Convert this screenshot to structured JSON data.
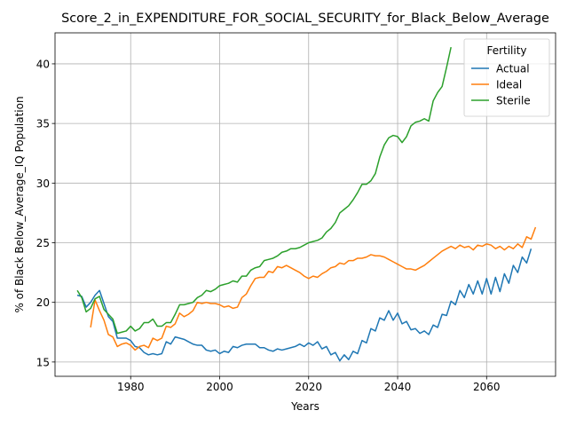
{
  "chart_data": {
    "type": "line",
    "title": "Score_2_in_EXPENDITURE_FOR_SOCIAL_SECURITY_for_Black_Below_Average",
    "xlabel": "Years",
    "ylabel": "% of Black Below_Average_IQ Population",
    "xlim": [
      1963,
      2075.5
    ],
    "ylim": [
      13.8,
      42.6
    ],
    "xticks": [
      1980,
      2000,
      2020,
      2040,
      2060
    ],
    "yticks": [
      15,
      20,
      25,
      30,
      35,
      40
    ],
    "grid": true,
    "legend": {
      "title": "Fertility",
      "position": "top-right"
    },
    "series": [
      {
        "name": "Actual",
        "color": "#1f77b4",
        "points": [
          [
            1968,
            20.6
          ],
          [
            1969,
            20.5
          ],
          [
            1970,
            19.6
          ],
          [
            1971,
            20.0
          ],
          [
            1972,
            20.6
          ],
          [
            1973,
            21.0
          ],
          [
            1974,
            19.9
          ],
          [
            1975,
            18.8
          ],
          [
            1976,
            18.4
          ],
          [
            1977,
            17.0
          ],
          [
            1978,
            17.0
          ],
          [
            1979,
            17.0
          ],
          [
            1980,
            16.8
          ],
          [
            1981,
            16.3
          ],
          [
            1982,
            16.2
          ],
          [
            1983,
            15.8
          ],
          [
            1984,
            15.6
          ],
          [
            1985,
            15.7
          ],
          [
            1986,
            15.6
          ],
          [
            1987,
            15.7
          ],
          [
            1988,
            16.7
          ],
          [
            1989,
            16.5
          ],
          [
            1990,
            17.1
          ],
          [
            1991,
            17.0
          ],
          [
            1992,
            16.9
          ],
          [
            1993,
            16.7
          ],
          [
            1994,
            16.5
          ],
          [
            1995,
            16.4
          ],
          [
            1996,
            16.4
          ],
          [
            1997,
            16.0
          ],
          [
            1998,
            15.9
          ],
          [
            1999,
            16.0
          ],
          [
            2000,
            15.7
          ],
          [
            2001,
            15.9
          ],
          [
            2002,
            15.8
          ],
          [
            2003,
            16.3
          ],
          [
            2004,
            16.2
          ],
          [
            2005,
            16.4
          ],
          [
            2006,
            16.5
          ],
          [
            2007,
            16.5
          ],
          [
            2008,
            16.5
          ],
          [
            2009,
            16.2
          ],
          [
            2010,
            16.2
          ],
          [
            2011,
            16.0
          ],
          [
            2012,
            15.9
          ],
          [
            2013,
            16.1
          ],
          [
            2014,
            16.0
          ],
          [
            2015,
            16.1
          ],
          [
            2016,
            16.2
          ],
          [
            2017,
            16.3
          ],
          [
            2018,
            16.5
          ],
          [
            2019,
            16.3
          ],
          [
            2020,
            16.6
          ],
          [
            2021,
            16.4
          ],
          [
            2022,
            16.7
          ],
          [
            2023,
            16.1
          ],
          [
            2024,
            16.3
          ],
          [
            2025,
            15.6
          ],
          [
            2026,
            15.8
          ],
          [
            2027,
            15.1
          ],
          [
            2028,
            15.6
          ],
          [
            2029,
            15.2
          ],
          [
            2030,
            15.9
          ],
          [
            2031,
            15.7
          ],
          [
            2032,
            16.8
          ],
          [
            2033,
            16.6
          ],
          [
            2034,
            17.8
          ],
          [
            2035,
            17.6
          ],
          [
            2036,
            18.7
          ],
          [
            2037,
            18.5
          ],
          [
            2038,
            19.3
          ],
          [
            2039,
            18.5
          ],
          [
            2040,
            19.1
          ],
          [
            2041,
            18.2
          ],
          [
            2042,
            18.4
          ],
          [
            2043,
            17.7
          ],
          [
            2044,
            17.8
          ],
          [
            2045,
            17.4
          ],
          [
            2046,
            17.6
          ],
          [
            2047,
            17.3
          ],
          [
            2048,
            18.1
          ],
          [
            2049,
            17.9
          ],
          [
            2050,
            19.0
          ],
          [
            2051,
            18.9
          ],
          [
            2052,
            20.1
          ],
          [
            2053,
            19.8
          ],
          [
            2054,
            21.0
          ],
          [
            2055,
            20.4
          ],
          [
            2056,
            21.5
          ],
          [
            2057,
            20.7
          ],
          [
            2058,
            21.8
          ],
          [
            2059,
            20.7
          ],
          [
            2060,
            22.0
          ],
          [
            2061,
            20.7
          ],
          [
            2062,
            22.1
          ],
          [
            2063,
            20.9
          ],
          [
            2064,
            22.4
          ],
          [
            2065,
            21.6
          ],
          [
            2066,
            23.1
          ],
          [
            2067,
            22.5
          ],
          [
            2068,
            23.8
          ],
          [
            2069,
            23.3
          ],
          [
            2070,
            24.5
          ]
        ]
      },
      {
        "name": "Ideal",
        "color": "#ff7f0e",
        "points": [
          [
            1971,
            17.9
          ],
          [
            1972,
            20.2
          ],
          [
            1973,
            19.3
          ],
          [
            1974,
            18.5
          ],
          [
            1975,
            17.3
          ],
          [
            1976,
            17.1
          ],
          [
            1977,
            16.3
          ],
          [
            1978,
            16.5
          ],
          [
            1979,
            16.6
          ],
          [
            1980,
            16.4
          ],
          [
            1981,
            16.0
          ],
          [
            1982,
            16.3
          ],
          [
            1983,
            16.4
          ],
          [
            1984,
            16.2
          ],
          [
            1985,
            17.0
          ],
          [
            1986,
            16.8
          ],
          [
            1987,
            17.0
          ],
          [
            1988,
            18.0
          ],
          [
            1989,
            17.9
          ],
          [
            1990,
            18.2
          ],
          [
            1991,
            19.1
          ],
          [
            1992,
            18.8
          ],
          [
            1993,
            19.0
          ],
          [
            1994,
            19.3
          ],
          [
            1995,
            20.0
          ],
          [
            1996,
            19.9
          ],
          [
            1997,
            20.0
          ],
          [
            1998,
            19.9
          ],
          [
            1999,
            19.9
          ],
          [
            2000,
            19.8
          ],
          [
            2001,
            19.6
          ],
          [
            2002,
            19.7
          ],
          [
            2003,
            19.5
          ],
          [
            2004,
            19.6
          ],
          [
            2005,
            20.4
          ],
          [
            2006,
            20.7
          ],
          [
            2007,
            21.4
          ],
          [
            2008,
            22.0
          ],
          [
            2009,
            22.1
          ],
          [
            2010,
            22.1
          ],
          [
            2011,
            22.6
          ],
          [
            2012,
            22.5
          ],
          [
            2013,
            23.0
          ],
          [
            2014,
            22.9
          ],
          [
            2015,
            23.1
          ],
          [
            2016,
            22.9
          ],
          [
            2017,
            22.7
          ],
          [
            2018,
            22.5
          ],
          [
            2019,
            22.2
          ],
          [
            2020,
            22.0
          ],
          [
            2021,
            22.2
          ],
          [
            2022,
            22.1
          ],
          [
            2023,
            22.4
          ],
          [
            2024,
            22.6
          ],
          [
            2025,
            22.9
          ],
          [
            2026,
            23.0
          ],
          [
            2027,
            23.3
          ],
          [
            2028,
            23.2
          ],
          [
            2029,
            23.5
          ],
          [
            2030,
            23.5
          ],
          [
            2031,
            23.7
          ],
          [
            2032,
            23.7
          ],
          [
            2033,
            23.8
          ],
          [
            2034,
            24.0
          ],
          [
            2035,
            23.9
          ],
          [
            2036,
            23.9
          ],
          [
            2037,
            23.8
          ],
          [
            2038,
            23.6
          ],
          [
            2039,
            23.4
          ],
          [
            2040,
            23.2
          ],
          [
            2041,
            23.0
          ],
          [
            2042,
            22.8
          ],
          [
            2043,
            22.8
          ],
          [
            2044,
            22.7
          ],
          [
            2045,
            22.9
          ],
          [
            2046,
            23.1
          ],
          [
            2047,
            23.4
          ],
          [
            2048,
            23.7
          ],
          [
            2049,
            24.0
          ],
          [
            2050,
            24.3
          ],
          [
            2051,
            24.5
          ],
          [
            2052,
            24.7
          ],
          [
            2053,
            24.5
          ],
          [
            2054,
            24.8
          ],
          [
            2055,
            24.6
          ],
          [
            2056,
            24.7
          ],
          [
            2057,
            24.4
          ],
          [
            2058,
            24.8
          ],
          [
            2059,
            24.7
          ],
          [
            2060,
            24.9
          ],
          [
            2061,
            24.8
          ],
          [
            2062,
            24.5
          ],
          [
            2063,
            24.7
          ],
          [
            2064,
            24.4
          ],
          [
            2065,
            24.7
          ],
          [
            2066,
            24.5
          ],
          [
            2067,
            24.9
          ],
          [
            2068,
            24.6
          ],
          [
            2069,
            25.5
          ],
          [
            2070,
            25.3
          ],
          [
            2071,
            26.3
          ]
        ]
      },
      {
        "name": "Sterile",
        "color": "#2ca02c",
        "points": [
          [
            1968,
            21.0
          ],
          [
            1969,
            20.4
          ],
          [
            1970,
            19.2
          ],
          [
            1971,
            19.5
          ],
          [
            1972,
            20.3
          ],
          [
            1973,
            20.5
          ],
          [
            1974,
            19.4
          ],
          [
            1975,
            19.0
          ],
          [
            1976,
            18.6
          ],
          [
            1977,
            17.4
          ],
          [
            1978,
            17.5
          ],
          [
            1979,
            17.6
          ],
          [
            1980,
            18.0
          ],
          [
            1981,
            17.6
          ],
          [
            1982,
            17.8
          ],
          [
            1983,
            18.3
          ],
          [
            1984,
            18.3
          ],
          [
            1985,
            18.6
          ],
          [
            1986,
            18.0
          ],
          [
            1987,
            18.0
          ],
          [
            1988,
            18.3
          ],
          [
            1989,
            18.3
          ],
          [
            1990,
            19.0
          ],
          [
            1991,
            19.8
          ],
          [
            1992,
            19.8
          ],
          [
            1993,
            19.9
          ],
          [
            1994,
            20.0
          ],
          [
            1995,
            20.4
          ],
          [
            1996,
            20.6
          ],
          [
            1997,
            21.0
          ],
          [
            1998,
            20.9
          ],
          [
            1999,
            21.1
          ],
          [
            2000,
            21.4
          ],
          [
            2001,
            21.5
          ],
          [
            2002,
            21.6
          ],
          [
            2003,
            21.8
          ],
          [
            2004,
            21.7
          ],
          [
            2005,
            22.2
          ],
          [
            2006,
            22.2
          ],
          [
            2007,
            22.7
          ],
          [
            2008,
            22.9
          ],
          [
            2009,
            23.0
          ],
          [
            2010,
            23.5
          ],
          [
            2011,
            23.6
          ],
          [
            2012,
            23.7
          ],
          [
            2013,
            23.9
          ],
          [
            2014,
            24.2
          ],
          [
            2015,
            24.3
          ],
          [
            2016,
            24.5
          ],
          [
            2017,
            24.5
          ],
          [
            2018,
            24.6
          ],
          [
            2019,
            24.8
          ],
          [
            2020,
            25.0
          ],
          [
            2021,
            25.1
          ],
          [
            2022,
            25.2
          ],
          [
            2023,
            25.4
          ],
          [
            2024,
            25.9
          ],
          [
            2025,
            26.2
          ],
          [
            2026,
            26.7
          ],
          [
            2027,
            27.5
          ],
          [
            2028,
            27.8
          ],
          [
            2029,
            28.1
          ],
          [
            2030,
            28.6
          ],
          [
            2031,
            29.2
          ],
          [
            2032,
            29.9
          ],
          [
            2033,
            29.9
          ],
          [
            2034,
            30.2
          ],
          [
            2035,
            30.8
          ],
          [
            2036,
            32.2
          ],
          [
            2037,
            33.2
          ],
          [
            2038,
            33.8
          ],
          [
            2039,
            34.0
          ],
          [
            2040,
            33.9
          ],
          [
            2041,
            33.4
          ],
          [
            2042,
            33.9
          ],
          [
            2043,
            34.8
          ],
          [
            2044,
            35.1
          ],
          [
            2045,
            35.2
          ],
          [
            2046,
            35.4
          ],
          [
            2047,
            35.2
          ],
          [
            2048,
            36.9
          ],
          [
            2049,
            37.6
          ],
          [
            2050,
            38.1
          ],
          [
            2051,
            39.7
          ],
          [
            2052,
            41.4
          ]
        ]
      }
    ]
  }
}
